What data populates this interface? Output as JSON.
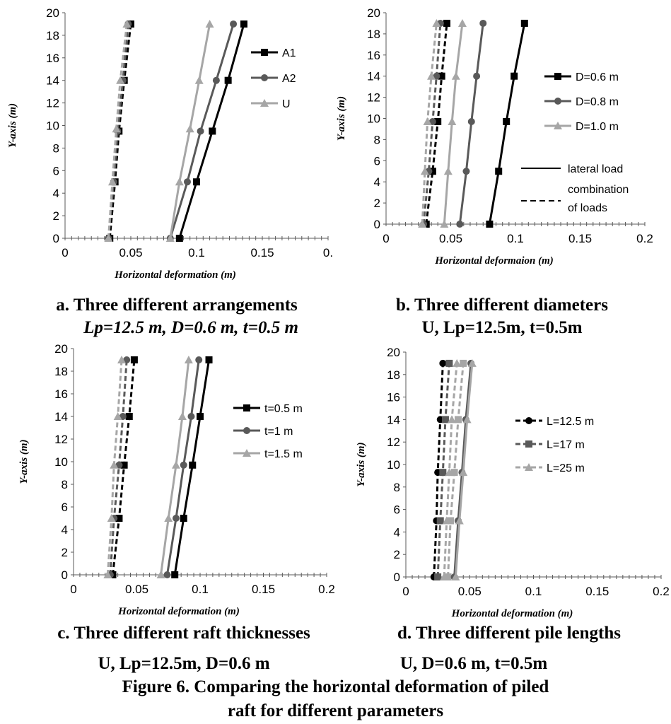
{
  "charts": [
    {
      "id": "a",
      "caption_line1": "a. Three different arrangements",
      "caption_line2": "Lp=12.5 m, D=0.6 m, t=0.5 m",
      "caption_line2_italic": true
    },
    {
      "id": "b",
      "caption_line1": "b. Three different diameters",
      "caption_line2": "U, Lp=12.5m, t=0.5m",
      "caption_line2_italic": false
    },
    {
      "id": "c",
      "caption_line1": "c. Three different raft thicknesses",
      "caption_line2": "U, Lp=12.5m, D=0.6 m",
      "caption_line2_italic": false
    },
    {
      "id": "d",
      "caption_line1": "d. Three different pile lengths",
      "caption_line2": "U, D=0.6 m, t=0.5m",
      "caption_line2_italic": false
    }
  ],
  "figure_caption_line1": "Figure 6. Comparing the horizontal deformation of piled",
  "figure_caption_line2": "raft for different parameters",
  "colors": {
    "black": "#000000",
    "dark_gray": "#595959",
    "light_gray": "#a6a6a6",
    "axis": "#595959"
  },
  "chart_data": [
    {
      "type": "line",
      "xlabel": "Horizontal deformation (m)",
      "ylabel": "Y-axis (m)",
      "xlim": [
        0,
        0.2
      ],
      "ylim": [
        0,
        20
      ],
      "xticks": [
        "0",
        "0.05",
        "0.1",
        "0.15",
        "0."
      ],
      "yticks": [
        "0",
        "2",
        "4",
        "6",
        "8",
        "10",
        "12",
        "14",
        "16",
        "18",
        "20"
      ],
      "legend": "right",
      "series": [
        {
          "name": "A1",
          "color": "#000000",
          "marker": "square",
          "dash": false,
          "x": [
            0.087,
            0.1,
            0.112,
            0.124,
            0.136
          ],
          "y": [
            0,
            5,
            9.5,
            14,
            19
          ]
        },
        {
          "name": "A2",
          "color": "#595959",
          "marker": "circle",
          "dash": false,
          "x": [
            0.08,
            0.093,
            0.103,
            0.115,
            0.128
          ],
          "y": [
            0,
            5,
            9.5,
            14,
            19
          ]
        },
        {
          "name": "U",
          "color": "#a6a6a6",
          "marker": "triangle",
          "dash": false,
          "x": [
            0.08,
            0.087,
            0.095,
            0.102,
            0.11
          ],
          "y": [
            0,
            5,
            9.7,
            14,
            19
          ]
        },
        {
          "color": "#000000",
          "marker": "square",
          "dash": true,
          "x": [
            0.034,
            0.038,
            0.041,
            0.045,
            0.05
          ],
          "y": [
            0,
            5,
            9.5,
            14,
            19
          ]
        },
        {
          "color": "#595959",
          "marker": "circle",
          "dash": true,
          "x": [
            0.033,
            0.037,
            0.04,
            0.044,
            0.048
          ],
          "y": [
            0,
            5,
            9.5,
            14,
            19
          ]
        },
        {
          "color": "#a6a6a6",
          "marker": "triangle",
          "dash": true,
          "x": [
            0.033,
            0.036,
            0.039,
            0.042,
            0.047
          ],
          "y": [
            0,
            5,
            9.7,
            14,
            19
          ]
        }
      ]
    },
    {
      "type": "line",
      "xlabel": "Horizontal deformaion (m)",
      "ylabel": "Y-axis (m)",
      "xlim": [
        0,
        0.2
      ],
      "ylim": [
        0,
        20
      ],
      "xticks": [
        "0",
        "0.05",
        "0.1",
        "0.15",
        "0.2"
      ],
      "yticks": [
        "0",
        "2",
        "4",
        "6",
        "8",
        "10",
        "12",
        "14",
        "16",
        "18",
        "20"
      ],
      "legend": "right",
      "legend_extra": [
        {
          "label": "lateral load",
          "dash": false
        },
        {
          "label": "combination of loads",
          "lines": [
            "combination",
            "of loads"
          ],
          "dash": true
        }
      ],
      "series": [
        {
          "name": "D=0.6 m",
          "color": "#000000",
          "marker": "square",
          "dash": false,
          "x": [
            0.08,
            0.087,
            0.093,
            0.099,
            0.107
          ],
          "y": [
            0,
            5,
            9.7,
            14,
            19
          ]
        },
        {
          "name": "D=0.8 m",
          "color": "#595959",
          "marker": "circle",
          "dash": false,
          "x": [
            0.057,
            0.062,
            0.066,
            0.07,
            0.075
          ],
          "y": [
            0,
            5,
            9.7,
            14,
            19
          ]
        },
        {
          "name": "D=1.0 m",
          "color": "#a6a6a6",
          "marker": "triangle",
          "dash": false,
          "x": [
            0.045,
            0.048,
            0.051,
            0.054,
            0.059
          ],
          "y": [
            0,
            5,
            9.7,
            14,
            19
          ]
        },
        {
          "color": "#000000",
          "marker": "square",
          "dash": true,
          "x": [
            0.031,
            0.036,
            0.04,
            0.043,
            0.047
          ],
          "y": [
            0,
            5,
            9.7,
            14,
            19
          ]
        },
        {
          "color": "#595959",
          "marker": "circle",
          "dash": true,
          "x": [
            0.029,
            0.033,
            0.036,
            0.039,
            0.042
          ],
          "y": [
            0,
            5,
            9.7,
            14,
            19
          ]
        },
        {
          "color": "#a6a6a6",
          "marker": "triangle",
          "dash": true,
          "x": [
            0.028,
            0.03,
            0.032,
            0.035,
            0.039
          ],
          "y": [
            0,
            5,
            9.7,
            14,
            19
          ]
        }
      ]
    },
    {
      "type": "line",
      "xlabel": "Horizontal deformation (m)",
      "ylabel": "Y-axis (m)",
      "xlim": [
        0,
        0.2
      ],
      "ylim": [
        0,
        20
      ],
      "xticks": [
        "0",
        "0.05",
        "0.1",
        "0.15",
        "0.2"
      ],
      "yticks": [
        "0",
        "2",
        "4",
        "6",
        "8",
        "10",
        "12",
        "14",
        "16",
        "18",
        "20"
      ],
      "legend": "right",
      "series": [
        {
          "name": "t=0.5 m",
          "color": "#000000",
          "marker": "square",
          "dash": false,
          "x": [
            0.08,
            0.087,
            0.094,
            0.1,
            0.107
          ],
          "y": [
            0,
            5,
            9.7,
            14,
            19
          ]
        },
        {
          "name": "t=1 m",
          "color": "#595959",
          "marker": "circle",
          "dash": false,
          "x": [
            0.074,
            0.081,
            0.087,
            0.093,
            0.099
          ],
          "y": [
            0,
            5,
            9.7,
            14,
            19
          ]
        },
        {
          "name": "t=1.5 m",
          "color": "#a6a6a6",
          "marker": "triangle",
          "dash": false,
          "x": [
            0.069,
            0.075,
            0.081,
            0.086,
            0.091
          ],
          "y": [
            0,
            5,
            9.7,
            14,
            19
          ]
        },
        {
          "color": "#000000",
          "marker": "square",
          "dash": true,
          "x": [
            0.031,
            0.036,
            0.04,
            0.044,
            0.048
          ],
          "y": [
            0,
            5,
            9.7,
            14,
            19
          ]
        },
        {
          "color": "#595959",
          "marker": "circle",
          "dash": true,
          "x": [
            0.029,
            0.032,
            0.036,
            0.039,
            0.042
          ],
          "y": [
            0,
            5,
            9.7,
            14,
            19
          ]
        },
        {
          "color": "#a6a6a6",
          "marker": "triangle",
          "dash": true,
          "x": [
            0.027,
            0.03,
            0.032,
            0.035,
            0.038
          ],
          "y": [
            0,
            5,
            9.7,
            14,
            19
          ]
        }
      ]
    },
    {
      "type": "line",
      "xlabel": "Horizontal deformation (m)",
      "ylabel": "Y-axis (m)",
      "xlim": [
        0,
        0.2
      ],
      "ylim": [
        0,
        20
      ],
      "xticks": [
        "0",
        "0.05",
        "0.1",
        "0.15",
        "0.2"
      ],
      "yticks": [
        "0",
        "2",
        "4",
        "6",
        "8",
        "10",
        "12",
        "14",
        "16",
        "18",
        "20"
      ],
      "legend": "right",
      "series": [
        {
          "name": "L=12.5 m",
          "color": "#000000",
          "marker": "circle",
          "dash": true,
          "x": [
            0.022,
            0.024,
            0.025,
            0.027,
            0.029
          ],
          "y": [
            0,
            5,
            9.3,
            14,
            19
          ]
        },
        {
          "name": "L=17 m",
          "color": "#595959",
          "marker": "square",
          "dash": true,
          "x": [
            0.025,
            0.027,
            0.029,
            0.031,
            0.034
          ],
          "y": [
            0,
            5,
            9.3,
            14,
            19
          ]
        },
        {
          "name": "L=25 m",
          "color": "#a6a6a6",
          "marker": "triangle",
          "dash": true,
          "x": [
            0.03,
            0.032,
            0.034,
            0.036,
            0.04
          ],
          "y": [
            0,
            5,
            9.3,
            14,
            19
          ]
        },
        {
          "color": "#a6a6a6",
          "marker": "square",
          "dash": true,
          "x": [
            0.033,
            0.035,
            0.038,
            0.041,
            0.045
          ],
          "y": [
            0,
            5,
            9.3,
            14,
            19
          ]
        },
        {
          "color": "#595959",
          "marker": "circle",
          "dash": false,
          "x": [
            0.038,
            0.041,
            0.044,
            0.047,
            0.051
          ],
          "y": [
            0,
            5,
            9.3,
            14,
            19
          ]
        },
        {
          "color": "#a6a6a6",
          "marker": "triangle",
          "dash": false,
          "x": [
            0.039,
            0.042,
            0.045,
            0.048,
            0.052
          ],
          "y": [
            0,
            5,
            9.3,
            14,
            19
          ]
        }
      ]
    }
  ]
}
